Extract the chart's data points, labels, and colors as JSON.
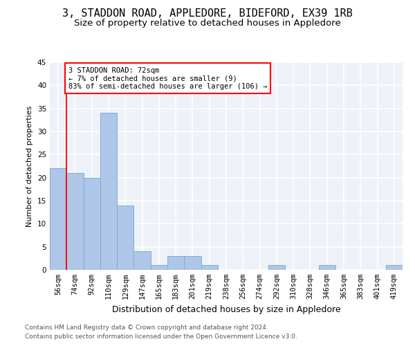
{
  "title": "3, STADDON ROAD, APPLEDORE, BIDEFORD, EX39 1RB",
  "subtitle": "Size of property relative to detached houses in Appledore",
  "xlabel": "Distribution of detached houses by size in Appledore",
  "ylabel": "Number of detached properties",
  "categories": [
    "56sqm",
    "74sqm",
    "92sqm",
    "110sqm",
    "129sqm",
    "147sqm",
    "165sqm",
    "183sqm",
    "201sqm",
    "219sqm",
    "238sqm",
    "256sqm",
    "274sqm",
    "292sqm",
    "310sqm",
    "328sqm",
    "346sqm",
    "365sqm",
    "383sqm",
    "401sqm",
    "419sqm"
  ],
  "values": [
    22,
    21,
    20,
    34,
    14,
    4,
    1,
    3,
    3,
    1,
    0,
    0,
    0,
    1,
    0,
    0,
    1,
    0,
    0,
    0,
    1
  ],
  "bar_color": "#aec6e8",
  "bar_edge_color": "#7aafd4",
  "vline_x": 0.5,
  "annotation_text": "3 STADDON ROAD: 72sqm\n← 7% of detached houses are smaller (9)\n83% of semi-detached houses are larger (106) →",
  "annotation_box_color": "white",
  "annotation_box_edge_color": "red",
  "ylim": [
    0,
    45
  ],
  "yticks": [
    0,
    5,
    10,
    15,
    20,
    25,
    30,
    35,
    40,
    45
  ],
  "footer_line1": "Contains HM Land Registry data © Crown copyright and database right 2024.",
  "footer_line2": "Contains public sector information licensed under the Open Government Licence v3.0.",
  "bg_color": "#eef2f8",
  "grid_color": "white",
  "title_fontsize": 11,
  "subtitle_fontsize": 9.5,
  "xlabel_fontsize": 9,
  "ylabel_fontsize": 8,
  "tick_fontsize": 7.5,
  "footer_fontsize": 6.5,
  "annotation_fontsize": 7.5
}
